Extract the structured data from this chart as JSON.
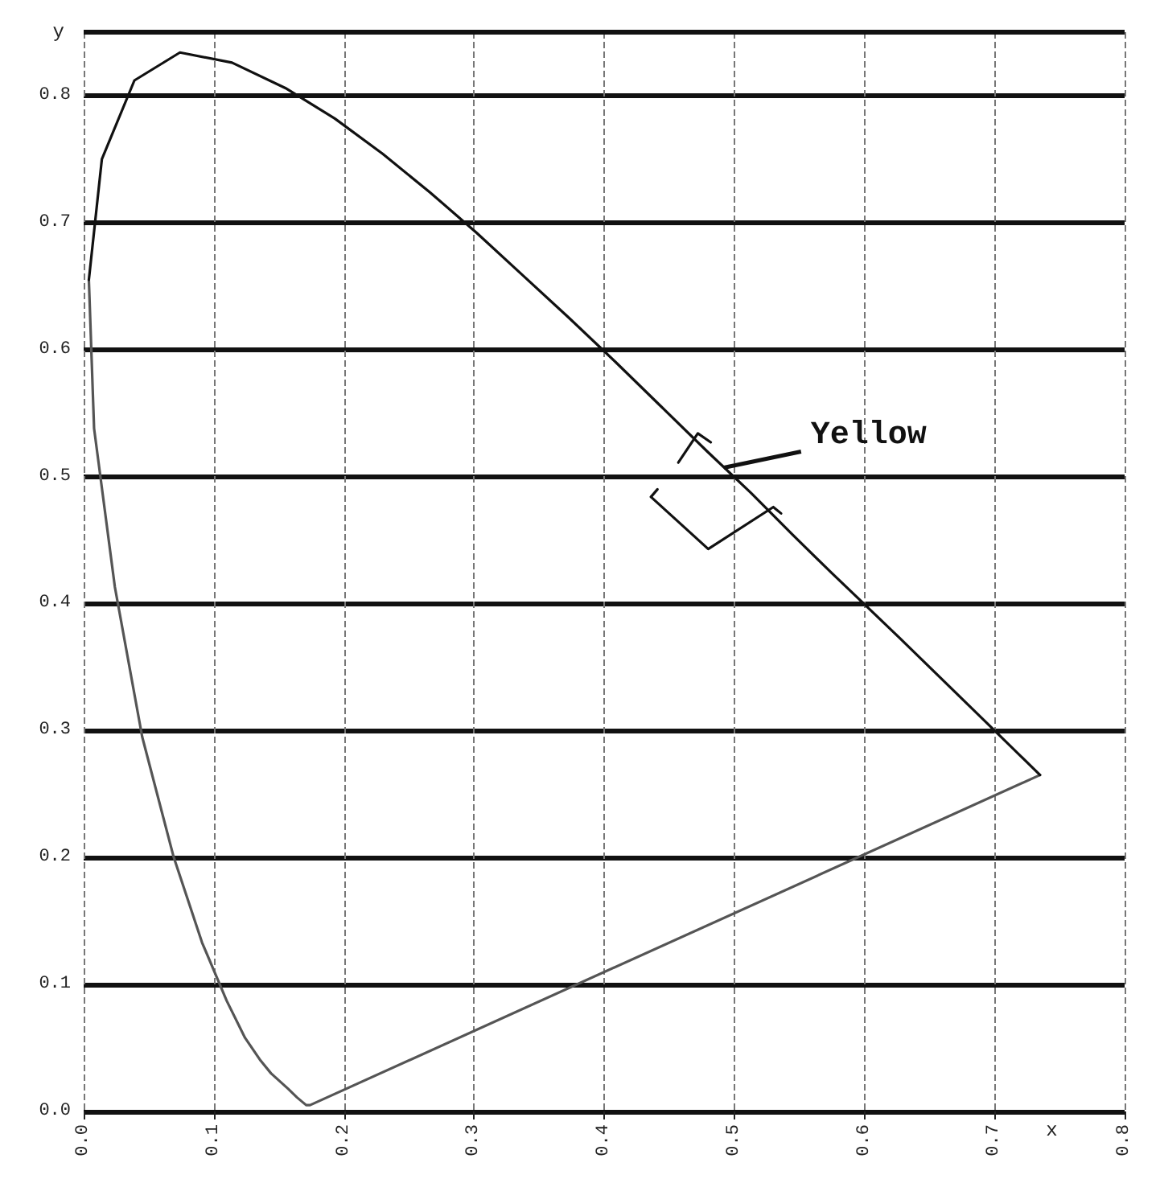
{
  "chart_data": {
    "type": "line",
    "xlabel": "x",
    "ylabel": "y",
    "xlim": [
      0,
      0.8
    ],
    "ylim": [
      0,
      0.85
    ],
    "xticks": [
      {
        "value": 0,
        "label": "0.0"
      },
      0.1,
      0.2,
      0.3,
      0.4,
      0.5,
      0.6,
      0.7,
      {
        "value": 0.8,
        "label": "0.8"
      }
    ],
    "yticks": [
      {
        "value": 0,
        "label": "0.0"
      },
      0.1,
      0.2,
      0.3,
      0.4,
      0.5,
      0.6,
      0.7,
      0.8
    ],
    "grid": true,
    "marker": "none",
    "line_style": "solid",
    "series": [
      {
        "color": "#555555",
        "x": [
          0.004,
          0.008,
          0.024,
          0.045,
          0.069,
          0.091,
          0.11,
          0.124,
          0.136,
          0.144,
          0.157,
          0.164,
          0.171,
          0.174,
          0.735
        ],
        "values": [
          0.655,
          0.538,
          0.413,
          0.295,
          0.201,
          0.133,
          0.087,
          0.058,
          0.04,
          0.03,
          0.018,
          0.011,
          0.005,
          0.005,
          0.265
        ]
      },
      {
        "color": "#111111",
        "x": [
          0.004,
          0.014,
          0.039,
          0.074,
          0.114,
          0.155,
          0.193,
          0.23,
          0.266,
          0.302,
          0.337,
          0.373,
          0.409,
          0.444,
          0.479,
          0.513,
          0.545,
          0.575,
          0.627,
          0.666,
          0.692,
          0.719,
          0.735
        ],
        "values": [
          0.655,
          0.75,
          0.812,
          0.834,
          0.826,
          0.806,
          0.782,
          0.754,
          0.724,
          0.692,
          0.659,
          0.625,
          0.59,
          0.555,
          0.52,
          0.487,
          0.454,
          0.424,
          0.373,
          0.334,
          0.308,
          0.281,
          0.265
        ]
      },
      {
        "color": "#111111",
        "x": [
          0.457,
          0.472,
          0.482
        ],
        "values": [
          0.511,
          0.534,
          0.527
        ]
      },
      {
        "color": "#111111",
        "x": [
          0.436,
          0.441
        ],
        "values": [
          0.484,
          0.49
        ]
      },
      {
        "color": "#111111",
        "x": [
          0.436,
          0.48,
          0.53,
          0.536
        ],
        "values": [
          0.484,
          0.443,
          0.476,
          0.471
        ]
      }
    ],
    "annotations": [
      {
        "text": "Yellow",
        "x": 0.492,
        "y": 0.507
      }
    ]
  }
}
